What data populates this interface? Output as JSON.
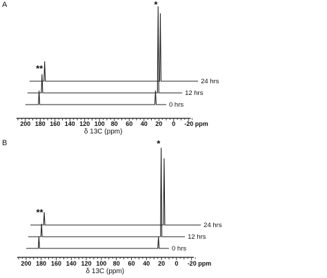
{
  "chart_data": [
    {
      "type": "line",
      "panel_label": "A",
      "xlabel": "δ 13C (ppm)",
      "x_ticks": [
        200,
        180,
        160,
        140,
        120,
        100,
        80,
        60,
        40,
        20,
        0,
        -20
      ],
      "x_tick_labels": [
        "200",
        "180",
        "160",
        "140",
        "120",
        "100",
        "80",
        "60",
        "40",
        "20",
        "0",
        "-20 ppm"
      ],
      "x_reversed": true,
      "series": [
        {
          "name": "0 hrs",
          "peaks": [
            {
              "ppm": 181.5,
              "height": 1.2
            },
            {
              "ppm": 24.5,
              "height": 1.2
            }
          ]
        },
        {
          "name": "12 hrs",
          "peaks": [
            {
              "ppm": 177.5,
              "height": 1.6
            },
            {
              "ppm": 21.0,
              "height": 7.4
            }
          ]
        },
        {
          "name": "24 hrs",
          "peaks": [
            {
              "ppm": 174.0,
              "height": 1.7
            },
            {
              "ppm": 18.0,
              "height": 5.8
            }
          ]
        }
      ],
      "annotations": [
        {
          "text": "**",
          "ppm": 181
        },
        {
          "text": "*",
          "ppm": 24
        }
      ]
    },
    {
      "type": "line",
      "panel_label": "B",
      "xlabel": "δ 13C (ppm)",
      "x_ticks": [
        200,
        180,
        160,
        140,
        120,
        100,
        80,
        60,
        40,
        20,
        0,
        -20
      ],
      "x_tick_labels": [
        "200",
        "180",
        "160",
        "140",
        "120",
        "100",
        "80",
        "60",
        "40",
        "20",
        "0",
        "-20 ppm"
      ],
      "x_reversed": true,
      "series": [
        {
          "name": "0 hrs",
          "peaks": [
            {
              "ppm": 183.0,
              "height": 1.0
            },
            {
              "ppm": 24.0,
              "height": 1.0
            }
          ]
        },
        {
          "name": "12 hrs",
          "peaks": [
            {
              "ppm": 179.5,
              "height": 1.1
            },
            {
              "ppm": 20.5,
              "height": 7.6
            }
          ]
        },
        {
          "name": "24 hrs",
          "peaks": [
            {
              "ppm": 176.0,
              "height": 1.1
            },
            {
              "ppm": 16.5,
              "height": 5.7
            }
          ]
        }
      ],
      "annotations": [
        {
          "text": "**",
          "ppm": 182
        },
        {
          "text": "*",
          "ppm": 24
        }
      ]
    }
  ]
}
